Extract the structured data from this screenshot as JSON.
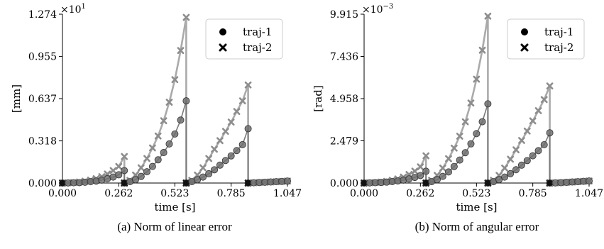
{
  "chart_data": [
    {
      "type": "line",
      "panel": "a",
      "caption": "(a) Norm of linear error",
      "xlabel": "time [s]",
      "ylabel": "[mm]",
      "multiplier_base": "×10",
      "multiplier_exp": "1",
      "xlim": [
        0,
        1.047
      ],
      "ylim": [
        0,
        1.274
      ],
      "xticks": [
        0.0,
        0.262,
        0.523,
        0.785,
        1.047
      ],
      "xtick_labels": [
        "0.000",
        "0.262",
        "0.523",
        "0.785",
        "1.047"
      ],
      "yticks": [
        0.0,
        0.318,
        0.637,
        0.955,
        1.274
      ],
      "ytick_labels": [
        "0.000",
        "0.318",
        "0.637",
        "0.955",
        "1.274"
      ],
      "legend_position": "top-right",
      "series": [
        {
          "name": "traj-1",
          "marker": "circle",
          "x": [
            0.0,
            0.026,
            0.052,
            0.079,
            0.105,
            0.131,
            0.157,
            0.183,
            0.209,
            0.236,
            0.262,
            0.288,
            0.288,
            0.314,
            0.34,
            0.366,
            0.393,
            0.419,
            0.445,
            0.471,
            0.497,
            0.523,
            0.55,
            0.576,
            0.576,
            0.602,
            0.628,
            0.654,
            0.681,
            0.707,
            0.733,
            0.759,
            0.785,
            0.811,
            0.838,
            0.864,
            0.864,
            0.89,
            0.916,
            0.942,
            0.969,
            0.995,
            1.021,
            1.047
          ],
          "y": [
            0.0,
            0.001,
            0.002,
            0.003,
            0.006,
            0.01,
            0.015,
            0.022,
            0.032,
            0.045,
            0.062,
            0.094,
            0.0,
            0.01,
            0.025,
            0.05,
            0.085,
            0.125,
            0.175,
            0.23,
            0.295,
            0.37,
            0.475,
            0.62,
            0.0,
            0.01,
            0.025,
            0.045,
            0.07,
            0.1,
            0.135,
            0.17,
            0.205,
            0.245,
            0.29,
            0.41,
            0.0,
            0.002,
            0.004,
            0.006,
            0.008,
            0.01,
            0.012,
            0.015
          ]
        },
        {
          "name": "traj-2",
          "marker": "x",
          "x": [
            0.0,
            0.026,
            0.052,
            0.079,
            0.105,
            0.131,
            0.157,
            0.183,
            0.209,
            0.236,
            0.262,
            0.288,
            0.288,
            0.314,
            0.34,
            0.366,
            0.393,
            0.419,
            0.445,
            0.471,
            0.497,
            0.523,
            0.55,
            0.576,
            0.576,
            0.602,
            0.628,
            0.654,
            0.681,
            0.707,
            0.733,
            0.759,
            0.785,
            0.811,
            0.838,
            0.864,
            0.864,
            0.89,
            0.916,
            0.942,
            0.969,
            0.995,
            1.021,
            1.047
          ],
          "y": [
            0.0,
            0.002,
            0.004,
            0.008,
            0.014,
            0.022,
            0.033,
            0.048,
            0.068,
            0.094,
            0.125,
            0.2,
            0.0,
            0.02,
            0.06,
            0.115,
            0.185,
            0.265,
            0.355,
            0.47,
            0.61,
            0.78,
            1.0,
            1.25,
            0.0,
            0.02,
            0.06,
            0.115,
            0.185,
            0.255,
            0.32,
            0.39,
            0.46,
            0.54,
            0.62,
            0.74,
            0.0,
            0.002,
            0.004,
            0.006,
            0.008,
            0.01,
            0.012,
            0.015
          ]
        }
      ]
    },
    {
      "type": "line",
      "panel": "b",
      "caption": "(b) Norm of angular error",
      "xlabel": "time [s]",
      "ylabel": "[rad]",
      "multiplier_base": "×10",
      "multiplier_exp": "−3",
      "xlim": [
        0,
        1.047
      ],
      "ylim": [
        0,
        9.915
      ],
      "xticks": [
        0.0,
        0.262,
        0.523,
        0.785,
        1.047
      ],
      "xtick_labels": [
        "0.000",
        "0.262",
        "0.523",
        "0.785",
        "1.047"
      ],
      "yticks": [
        0.0,
        2.479,
        4.958,
        7.436,
        9.915
      ],
      "ytick_labels": [
        "0.000",
        "2.479",
        "4.958",
        "7.436",
        "9.915"
      ],
      "legend_position": "top-right",
      "series": [
        {
          "name": "traj-1",
          "marker": "circle",
          "x": [
            0.0,
            0.026,
            0.052,
            0.079,
            0.105,
            0.131,
            0.157,
            0.183,
            0.209,
            0.236,
            0.262,
            0.288,
            0.288,
            0.314,
            0.34,
            0.366,
            0.393,
            0.419,
            0.445,
            0.471,
            0.497,
            0.523,
            0.55,
            0.576,
            0.576,
            0.602,
            0.628,
            0.654,
            0.681,
            0.707,
            0.733,
            0.759,
            0.785,
            0.811,
            0.838,
            0.864,
            0.864,
            0.89,
            0.916,
            0.942,
            0.969,
            0.995,
            1.021,
            1.047
          ],
          "y": [
            0.0,
            0.01,
            0.02,
            0.035,
            0.055,
            0.085,
            0.12,
            0.17,
            0.24,
            0.33,
            0.44,
            0.69,
            0.0,
            0.08,
            0.2,
            0.39,
            0.65,
            0.97,
            1.35,
            1.78,
            2.3,
            2.9,
            3.6,
            4.65,
            0.0,
            0.08,
            0.2,
            0.35,
            0.55,
            0.78,
            1.05,
            1.32,
            1.6,
            1.9,
            2.25,
            2.95,
            0.0,
            0.01,
            0.02,
            0.04,
            0.06,
            0.08,
            0.1,
            0.12
          ]
        },
        {
          "name": "traj-2",
          "marker": "x",
          "x": [
            0.0,
            0.026,
            0.052,
            0.079,
            0.105,
            0.131,
            0.157,
            0.183,
            0.209,
            0.236,
            0.262,
            0.288,
            0.288,
            0.314,
            0.34,
            0.366,
            0.393,
            0.419,
            0.445,
            0.471,
            0.497,
            0.523,
            0.55,
            0.576,
            0.576,
            0.602,
            0.628,
            0.654,
            0.681,
            0.707,
            0.733,
            0.759,
            0.785,
            0.811,
            0.838,
            0.864,
            0.864,
            0.89,
            0.916,
            0.942,
            0.969,
            0.995,
            1.021,
            1.047
          ],
          "y": [
            0.0,
            0.015,
            0.03,
            0.06,
            0.1,
            0.16,
            0.24,
            0.35,
            0.5,
            0.7,
            0.95,
            1.6,
            0.0,
            0.16,
            0.45,
            0.88,
            1.43,
            2.05,
            2.75,
            3.6,
            4.7,
            6.1,
            7.8,
            9.8,
            0.0,
            0.16,
            0.45,
            0.88,
            1.4,
            1.95,
            2.5,
            3.05,
            3.65,
            4.25,
            4.9,
            5.7,
            0.0,
            0.01,
            0.02,
            0.04,
            0.06,
            0.08,
            0.1,
            0.12
          ]
        }
      ]
    }
  ]
}
